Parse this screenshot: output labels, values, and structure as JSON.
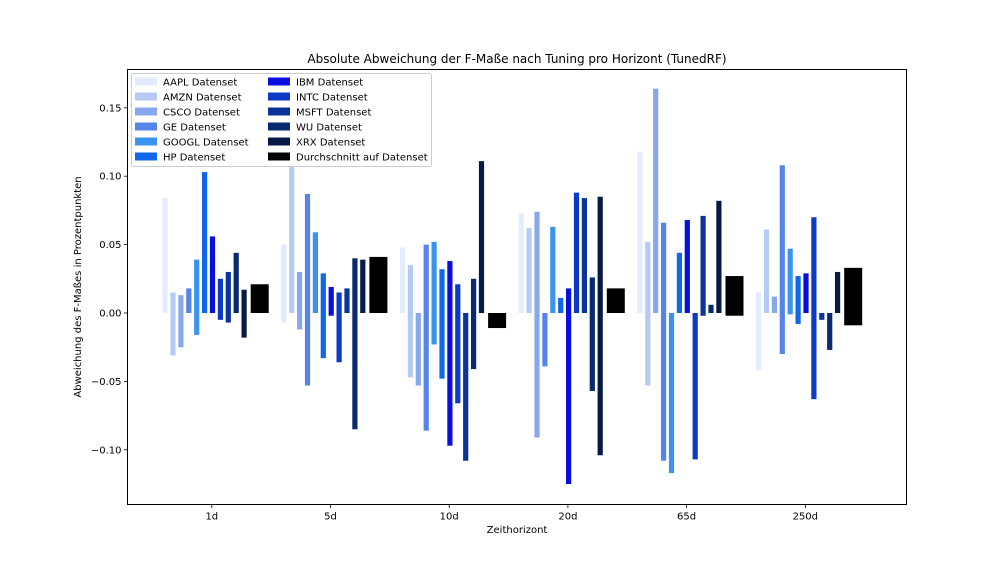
{
  "chart_data": {
    "type": "bar",
    "title": "Absolute Abweichung der F-Maße nach Tuning pro Horizont (TunedRF)",
    "xlabel": "Zeithorizont",
    "ylabel": "Abweichung des F-Maßes in Prozentpunkten",
    "categories": [
      "1d",
      "5d",
      "10d",
      "20d",
      "65d",
      "250d"
    ],
    "ylim": [
      -0.14,
      0.175
    ],
    "yticks": [
      "0.15",
      "0.10",
      "0.05",
      "0.00",
      "−0.05",
      "−0.10"
    ],
    "ytick_values": [
      0.15,
      0.1,
      0.05,
      0.0,
      -0.05,
      -0.1
    ],
    "legend_placement": "top-left",
    "legend_columns": 2,
    "series": [
      {
        "name": "AAPL Datenset",
        "color": "#e3ecfd",
        "ranges": [
          [
            0,
            0.084
          ],
          [
            -0.007,
            0.05
          ],
          [
            0,
            0.048
          ],
          [
            0,
            0.073
          ],
          [
            0,
            0.118
          ],
          [
            -0.042,
            0.015
          ]
        ]
      },
      {
        "name": "AMZN Datenset",
        "color": "#b5cbf6",
        "ranges": [
          [
            -0.031,
            0.015
          ],
          [
            0,
            0.107
          ],
          [
            -0.047,
            0.035
          ],
          [
            0,
            0.062
          ],
          [
            -0.053,
            0.052
          ],
          [
            0,
            0.061
          ]
        ]
      },
      {
        "name": "CSCO Datenset",
        "color": "#87a8ee",
        "ranges": [
          [
            -0.025,
            0.013
          ],
          [
            -0.012,
            0.03
          ],
          [
            -0.053,
            0.0
          ],
          [
            -0.091,
            0.074
          ],
          [
            0,
            0.164
          ],
          [
            0,
            0.012
          ]
        ]
      },
      {
        "name": "GE Datenset",
        "color": "#5585ec",
        "ranges": [
          [
            0,
            0.018
          ],
          [
            -0.053,
            0.087
          ],
          [
            -0.086,
            0.05
          ],
          [
            -0.039,
            0.0
          ],
          [
            -0.108,
            0.066
          ],
          [
            -0.03,
            0.108
          ]
        ]
      },
      {
        "name": "GOOGL Datenset",
        "color": "#3b93f0",
        "ranges": [
          [
            -0.016,
            0.039
          ],
          [
            0,
            0.059
          ],
          [
            -0.023,
            0.052
          ],
          [
            0,
            0.063
          ],
          [
            -0.117,
            0.0
          ],
          [
            -0.001,
            0.047
          ]
        ]
      },
      {
        "name": "HP Datenset",
        "color": "#0f68ea",
        "ranges": [
          [
            0,
            0.103
          ],
          [
            -0.033,
            0.029
          ],
          [
            -0.048,
            0.032
          ],
          [
            0,
            0.011
          ],
          [
            0,
            0.044
          ],
          [
            -0.008,
            0.027
          ]
        ]
      },
      {
        "name": "IBM Datenset",
        "color": "#0a0fe0",
        "ranges": [
          [
            0,
            0.056
          ],
          [
            -0.002,
            0.019
          ],
          [
            -0.097,
            0.038
          ],
          [
            -0.125,
            0.018
          ],
          [
            0,
            0.068
          ],
          [
            0,
            0.029
          ]
        ]
      },
      {
        "name": "INTC Datenset",
        "color": "#0b3ac7",
        "ranges": [
          [
            -0.005,
            0.025
          ],
          [
            -0.036,
            0.015
          ],
          [
            -0.066,
            0.021
          ],
          [
            0,
            0.088
          ],
          [
            -0.107,
            0.0
          ],
          [
            -0.063,
            0.07
          ]
        ]
      },
      {
        "name": "MSFT Datenset",
        "color": "#0a349a",
        "ranges": [
          [
            -0.007,
            0.03
          ],
          [
            0,
            0.018
          ],
          [
            -0.108,
            0.0
          ],
          [
            0,
            0.084
          ],
          [
            -0.002,
            0.071
          ],
          [
            -0.005,
            0.0
          ]
        ]
      },
      {
        "name": "WU Datenset",
        "color": "#082a6e",
        "ranges": [
          [
            0,
            0.044
          ],
          [
            -0.085,
            0.04
          ],
          [
            -0.041,
            0.025
          ],
          [
            -0.057,
            0.026
          ],
          [
            0,
            0.006
          ],
          [
            -0.027,
            0.0
          ]
        ]
      },
      {
        "name": "XRX Datenset",
        "color": "#061a45",
        "ranges": [
          [
            -0.018,
            0.017
          ],
          [
            0,
            0.039
          ],
          [
            0,
            0.111
          ],
          [
            -0.104,
            0.085
          ],
          [
            0,
            0.082
          ],
          [
            0,
            0.03
          ]
        ]
      },
      {
        "name": "Durchschnitt auf Datenset",
        "color": "#000000",
        "ranges": [
          [
            0,
            0.021
          ],
          [
            0,
            0.041
          ],
          [
            -0.011,
            0.0
          ],
          [
            0,
            0.018
          ],
          [
            -0.002,
            0.027
          ],
          [
            -0.009,
            0.033
          ]
        ]
      }
    ]
  }
}
